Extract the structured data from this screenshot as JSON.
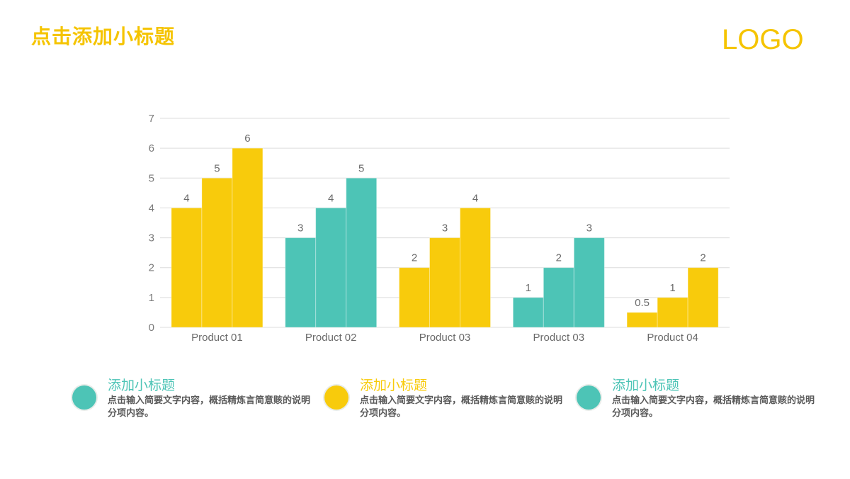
{
  "header": {
    "title": "点击添加小标题",
    "logo": "LOGO"
  },
  "colors": {
    "yellow": "#f8cb0c",
    "teal": "#4dc4b6",
    "title_yellow": "#f5c400",
    "grid": "#dcdcdc"
  },
  "chart_data": {
    "type": "bar",
    "categories": [
      "Product 01",
      "Product 02",
      "Product 03",
      "Product 03",
      "Product 04"
    ],
    "group_colors": [
      "yellow",
      "teal",
      "yellow",
      "teal",
      "yellow"
    ],
    "series": [
      {
        "values": [
          4,
          3,
          2,
          1,
          0.5
        ]
      },
      {
        "values": [
          5,
          4,
          3,
          2,
          1
        ]
      },
      {
        "values": [
          6,
          5,
          4,
          3,
          2
        ]
      }
    ],
    "ylim": [
      0,
      7
    ],
    "yticks": [
      0,
      1,
      2,
      3,
      4,
      5,
      6,
      7
    ],
    "grid": true,
    "data_labels": true
  },
  "legend": [
    {
      "title": "添加小标题",
      "desc": "点击输入简要文字内容，概括精炼言简意赅的说明分项内容。",
      "color": "teal"
    },
    {
      "title": "添加小标题",
      "desc": "点击输入简要文字内容，概括精炼言简意赅的说明分项内容。",
      "color": "yellow"
    },
    {
      "title": "添加小标题",
      "desc": "点击输入简要文字内容，概括精炼言简意赅的说明分项内容。",
      "color": "teal"
    }
  ]
}
